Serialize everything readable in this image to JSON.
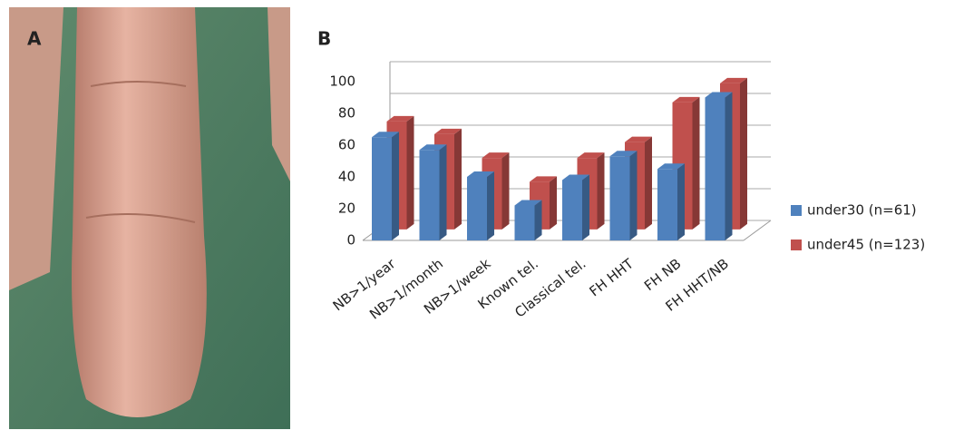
{
  "figure": {
    "panel_labels": [
      "A",
      "B"
    ]
  },
  "chart_data": {
    "type": "bar3d",
    "categories": [
      "NB>1/year",
      "NB>1/month",
      "NB>1/week",
      "Known tel.",
      "Classical tel.",
      "FH HHT",
      "FH NB",
      "FH HHT/NB"
    ],
    "series": [
      {
        "name": "under30 (n=61)",
        "color": "#4f81bd",
        "values": [
          65,
          57,
          40,
          22,
          38,
          53,
          45,
          90
        ]
      },
      {
        "name": "under45 (n=123)",
        "color": "#c0504d",
        "values": [
          68,
          60,
          45,
          30,
          45,
          55,
          80,
          92
        ]
      }
    ],
    "ylim": [
      0,
      100
    ],
    "yticks": [
      0,
      20,
      40,
      60,
      80,
      100
    ],
    "grid": true,
    "legend": "right"
  }
}
